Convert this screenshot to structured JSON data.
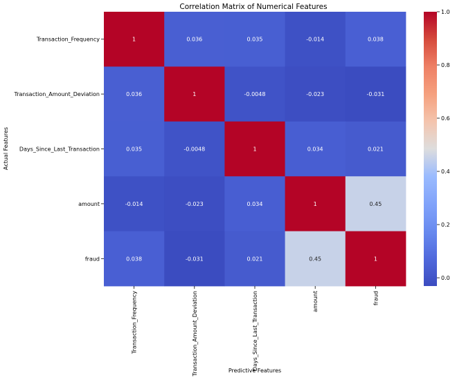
{
  "chart_data": {
    "type": "heatmap",
    "title": "Correlation Matrix of Numerical Features",
    "xlabel": "Predictive Features",
    "ylabel": "Actual Features",
    "x_categories": [
      "Transaction_Frequency",
      "Transaction_Amount_Deviation",
      "Days_Since_Last_Transaction",
      "amount",
      "fraud"
    ],
    "y_categories": [
      "Transaction_Frequency",
      "Transaction_Amount_Deviation",
      "Days_Since_Last_Transaction",
      "amount",
      "fraud"
    ],
    "values": [
      [
        1,
        0.036,
        0.035,
        -0.014,
        0.038
      ],
      [
        0.036,
        1,
        -0.0048,
        -0.023,
        -0.031
      ],
      [
        0.035,
        -0.0048,
        1,
        0.034,
        0.021
      ],
      [
        -0.014,
        -0.023,
        0.034,
        1,
        0.45
      ],
      [
        0.038,
        -0.031,
        0.021,
        0.45,
        1
      ]
    ],
    "cell_labels": [
      [
        "1",
        "0.036",
        "0.035",
        "-0.014",
        "0.038"
      ],
      [
        "0.036",
        "1",
        "-0.0048",
        "-0.023",
        "-0.031"
      ],
      [
        "0.035",
        "-0.0048",
        "1",
        "0.034",
        "0.021"
      ],
      [
        "-0.014",
        "-0.023",
        "0.034",
        "1",
        "0.45"
      ],
      [
        "0.038",
        "-0.031",
        "0.021",
        "0.45",
        "1"
      ]
    ],
    "colormap": "coolwarm",
    "colorbar": {
      "vmin": -0.031,
      "vmax": 1.0,
      "ticks": [
        0.0,
        0.2,
        0.4,
        0.6,
        0.8,
        1.0
      ],
      "tick_labels": [
        "0.0",
        "0.2",
        "0.4",
        "0.6",
        "0.8",
        "1.0"
      ]
    }
  }
}
